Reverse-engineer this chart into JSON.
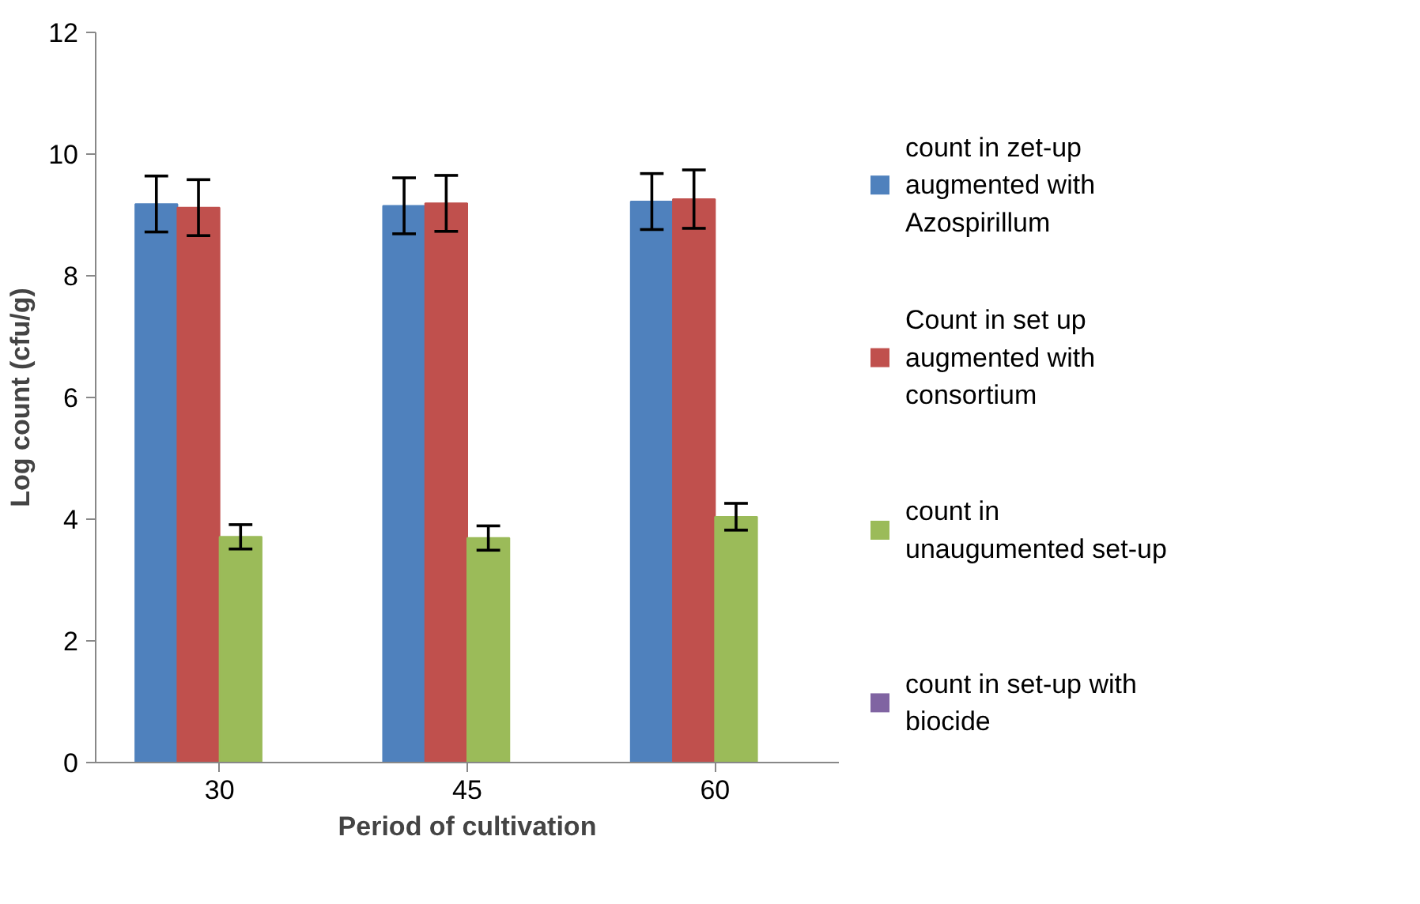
{
  "chart_data": {
    "type": "bar",
    "xlabel": "Period of cultivation",
    "ylabel": "Log count (cfu/g)",
    "categories": [
      "30",
      "45",
      "60"
    ],
    "series": [
      {
        "name": "count in zet-up augmented with Azospirillum",
        "color": "#4f81bd",
        "values": [
          9.18,
          9.15,
          9.22
        ],
        "errors": [
          0.46,
          0.46,
          0.46
        ]
      },
      {
        "name": "Count in set up augmented with consortium",
        "color": "#c0504d",
        "values": [
          9.12,
          9.19,
          9.26
        ],
        "errors": [
          0.46,
          0.46,
          0.48
        ]
      },
      {
        "name": "count in unaugumented set-up",
        "color": "#9bbb59",
        "values": [
          3.71,
          3.69,
          4.04
        ],
        "errors": [
          0.2,
          0.2,
          0.22
        ]
      },
      {
        "name": "count in set-up with biocide",
        "color": "#8064a2",
        "values": [
          0,
          0,
          0
        ]
      }
    ],
    "ylim": [
      0,
      12
    ],
    "yticks": [
      0,
      2,
      4,
      6,
      8,
      10,
      12
    ],
    "grid": false,
    "legend": "right"
  }
}
